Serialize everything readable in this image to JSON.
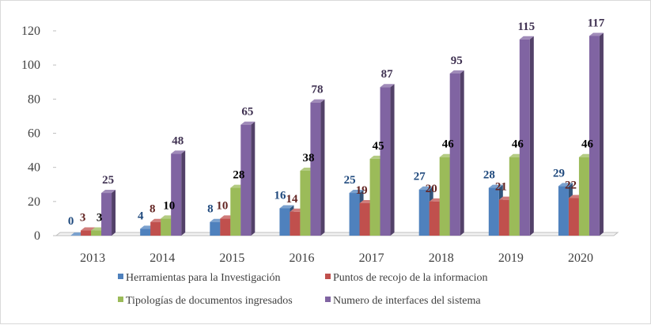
{
  "chart_data": {
    "type": "bar",
    "title": "",
    "xlabel": "",
    "ylabel": "",
    "ylim": [
      0,
      120
    ],
    "yticks": [
      0,
      20,
      40,
      60,
      80,
      100,
      120
    ],
    "grid": false,
    "legend_position": "bottom",
    "categories": [
      "2013",
      "2014",
      "2015",
      "2016",
      "2017",
      "2018",
      "2019",
      "2020"
    ],
    "series": [
      {
        "name": "Herramientas para la Investigación",
        "color": "#4f81bd",
        "label_color": "#1f497d",
        "values": [
          0,
          4,
          8,
          16,
          25,
          27,
          28,
          29
        ]
      },
      {
        "name": "Puntos de recojo de la informacion",
        "color": "#c0504d",
        "label_color": "#632523",
        "values": [
          3,
          8,
          10,
          14,
          19,
          20,
          21,
          22
        ]
      },
      {
        "name": "Tipologías de documentos ingresados",
        "color": "#9bbb59",
        "label_color": "#000000",
        "values": [
          3,
          10,
          28,
          38,
          45,
          46,
          46,
          46
        ]
      },
      {
        "name": "Numero de interfaces del sistema",
        "color": "#8064a2",
        "label_color": "#3f3151",
        "values": [
          25,
          48,
          65,
          78,
          87,
          95,
          115,
          117
        ]
      }
    ]
  }
}
